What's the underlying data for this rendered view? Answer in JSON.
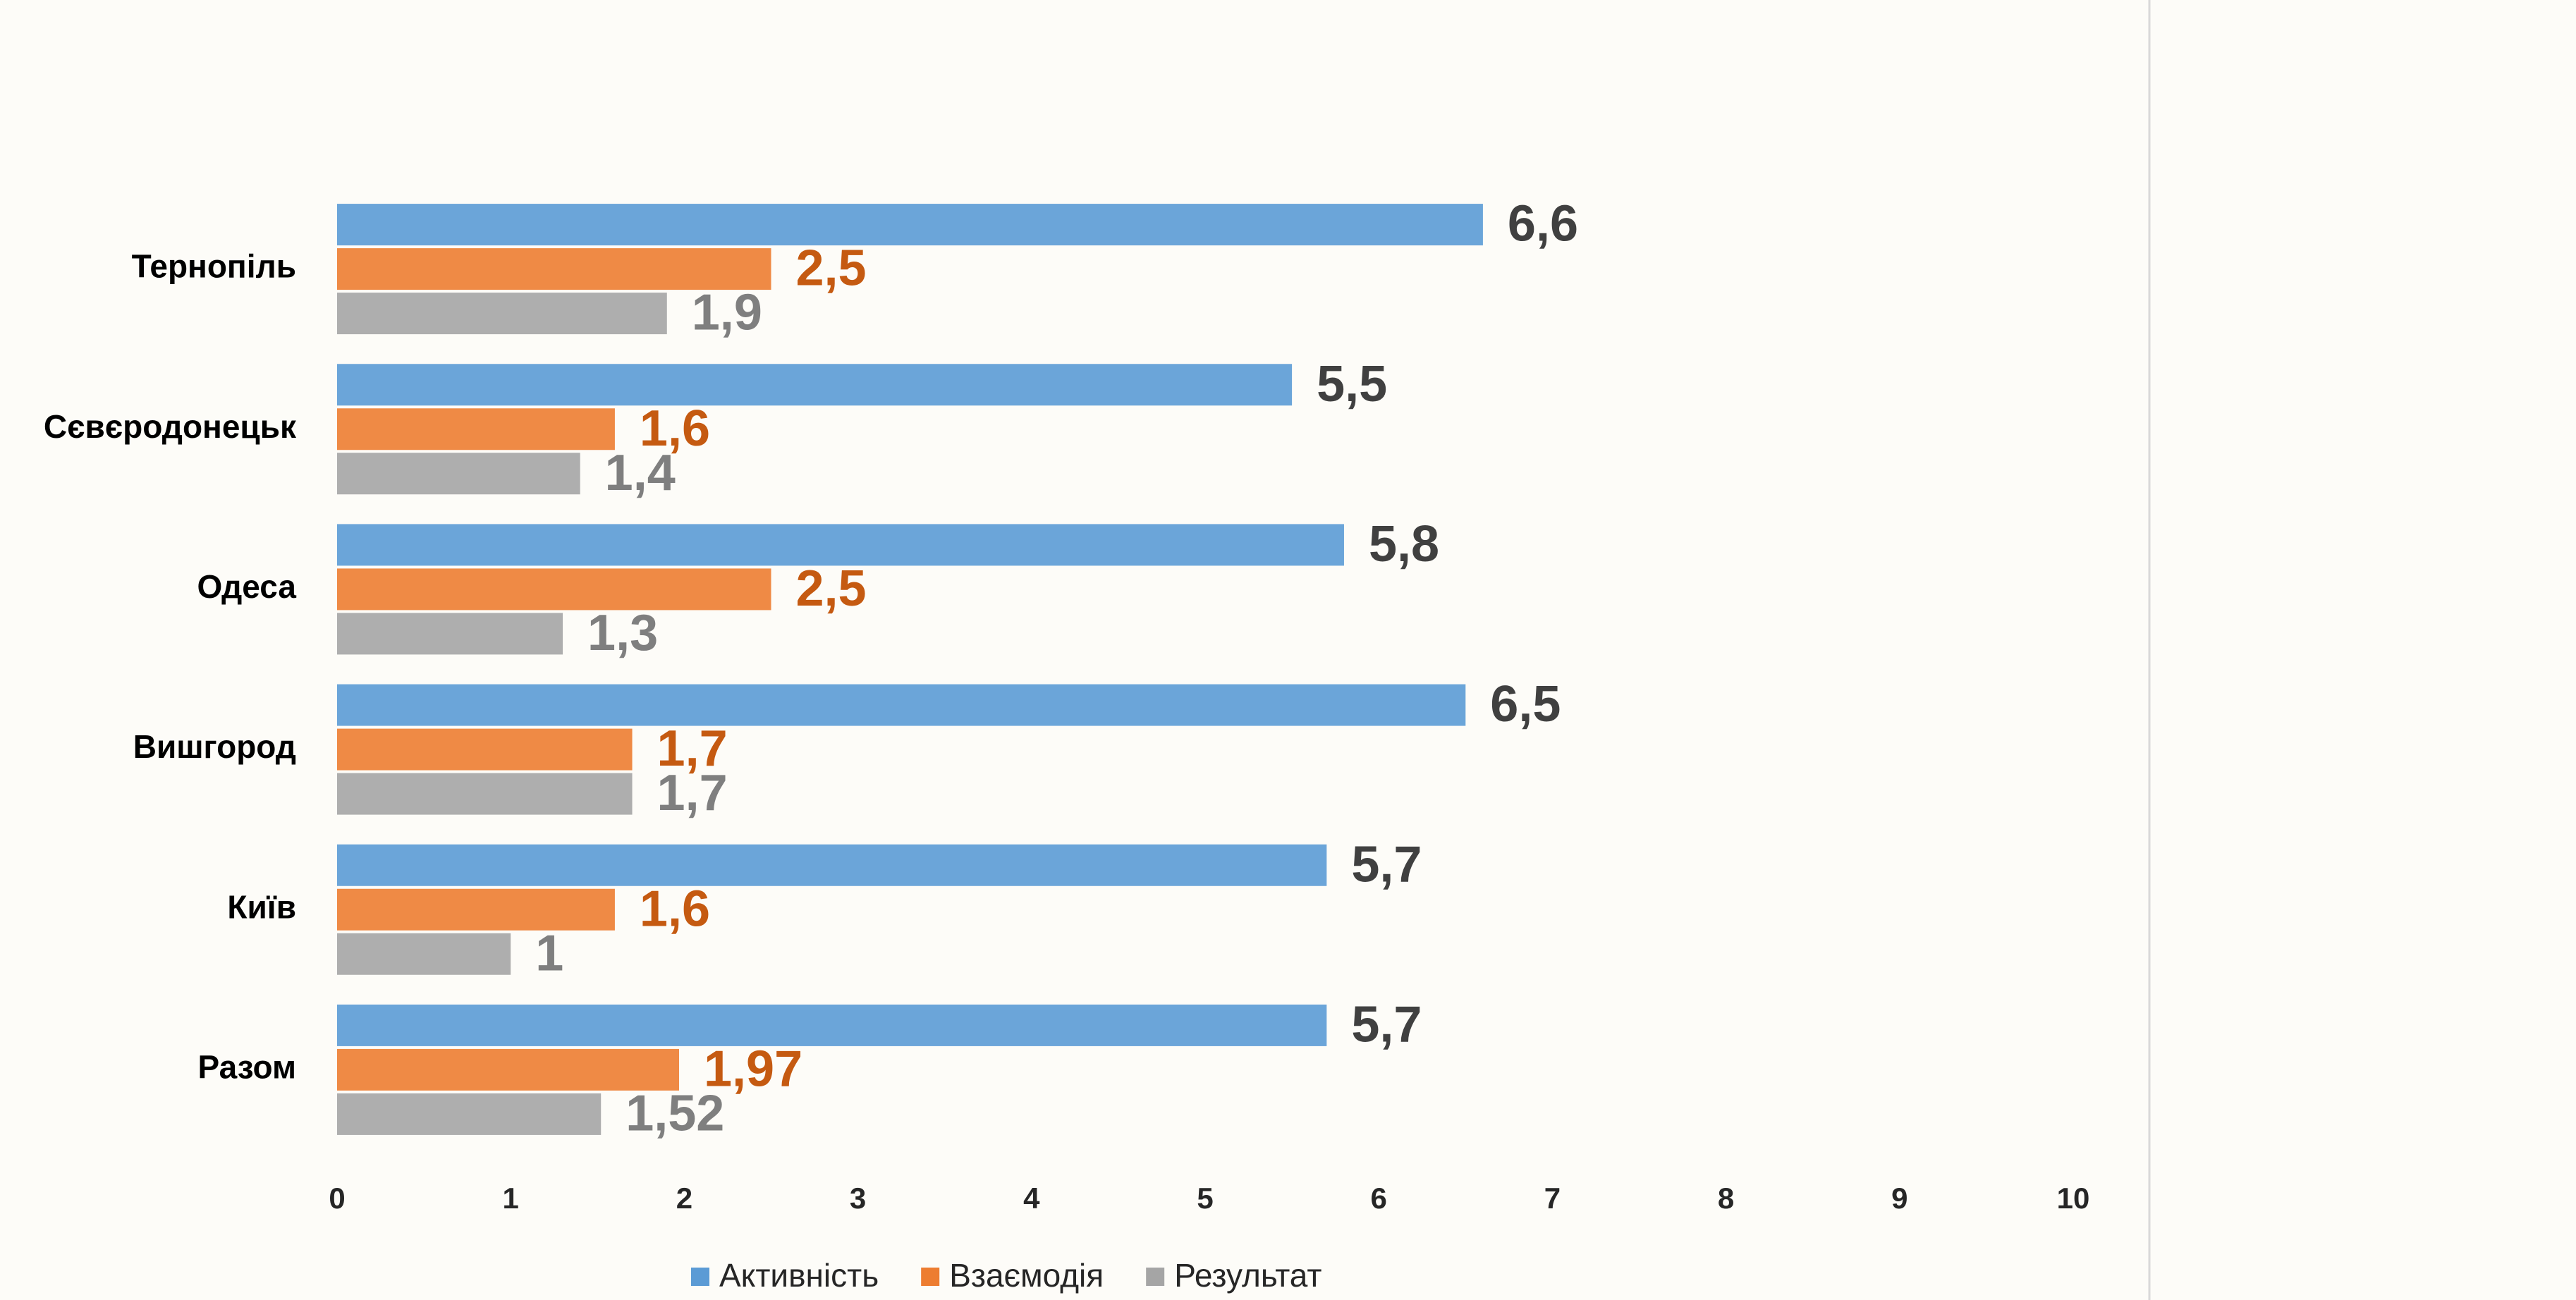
{
  "chart_data": {
    "type": "hbar",
    "categories": [
      "Тернопіль",
      "Сєвєродонецьк",
      "Одеса",
      "Вишгород",
      "Київ",
      "Разом"
    ],
    "series": [
      {
        "name": "Активність",
        "color": "#5b9bd5",
        "label_color": "#404040",
        "values": [
          6.6,
          5.5,
          5.8,
          6.5,
          5.7,
          5.7
        ],
        "value_labels": [
          "6,6",
          "5,5",
          "5,8",
          "6,5",
          "5,7",
          "5,7"
        ]
      },
      {
        "name": "Взаємодія",
        "color": "#ed7d31",
        "label_color": "#c55a11",
        "values": [
          2.5,
          1.6,
          2.5,
          1.7,
          1.6,
          1.97
        ],
        "value_labels": [
          "2,5",
          "1,6",
          "2,5",
          "1,7",
          "1,6",
          "1,97"
        ]
      },
      {
        "name": "Результат",
        "color": "#a5a5a5",
        "label_color": "#7f7f7f",
        "values": [
          1.9,
          1.4,
          1.3,
          1.7,
          1,
          1.52
        ],
        "value_labels": [
          "1,9",
          "1,4",
          "1,3",
          "1,7",
          "1",
          "1,52"
        ]
      }
    ],
    "xlim": [
      0,
      10
    ],
    "xticks": [
      0,
      1,
      2,
      3,
      4,
      5,
      6,
      7,
      8,
      9,
      10
    ]
  }
}
